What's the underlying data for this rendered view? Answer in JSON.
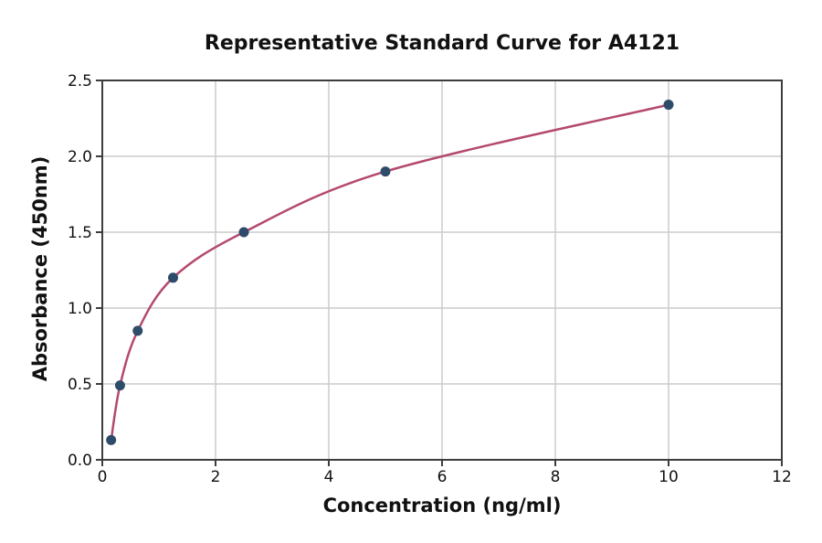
{
  "title": "Representative Standard Curve for A4121",
  "colors": {
    "background": "#ffffff",
    "curve": "#b4496e",
    "marker": "#2e4b69",
    "grid": "#cccccc",
    "spine": "#3d3d3d",
    "text": "#111111"
  },
  "chart_data": {
    "type": "scatter",
    "title": "Representative Standard Curve for A4121",
    "xlabel": "Concentration (ng/ml)",
    "ylabel": "Absorbance (450nm)",
    "xlim": [
      0,
      12
    ],
    "ylim": [
      0,
      2.5
    ],
    "x_ticks": [
      0,
      2,
      4,
      6,
      8,
      10,
      12
    ],
    "x_tick_labels": [
      "0",
      "2",
      "4",
      "6",
      "8",
      "10",
      "12"
    ],
    "y_ticks": [
      0,
      0.5,
      1,
      1.5,
      2,
      2.5
    ],
    "y_tick_labels": [
      "0.0",
      "0.5",
      "1.0",
      "1.5",
      "2.0",
      "2.5"
    ],
    "grid": true,
    "legend": false,
    "series": [
      {
        "name": "standard-points",
        "type": "scatter",
        "color": "#2e4b69",
        "x": [
          0.156,
          0.313,
          0.625,
          1.25,
          2.5,
          5,
          10
        ],
        "y": [
          0.13,
          0.49,
          0.85,
          1.2,
          1.5,
          1.9,
          2.34
        ]
      },
      {
        "name": "fitted-curve",
        "type": "smooth-line",
        "color": "#b4496e",
        "x": [
          0.156,
          0.313,
          0.625,
          1.25,
          2.5,
          5,
          10
        ],
        "y": [
          0.13,
          0.49,
          0.85,
          1.2,
          1.5,
          1.9,
          2.34
        ]
      }
    ]
  }
}
